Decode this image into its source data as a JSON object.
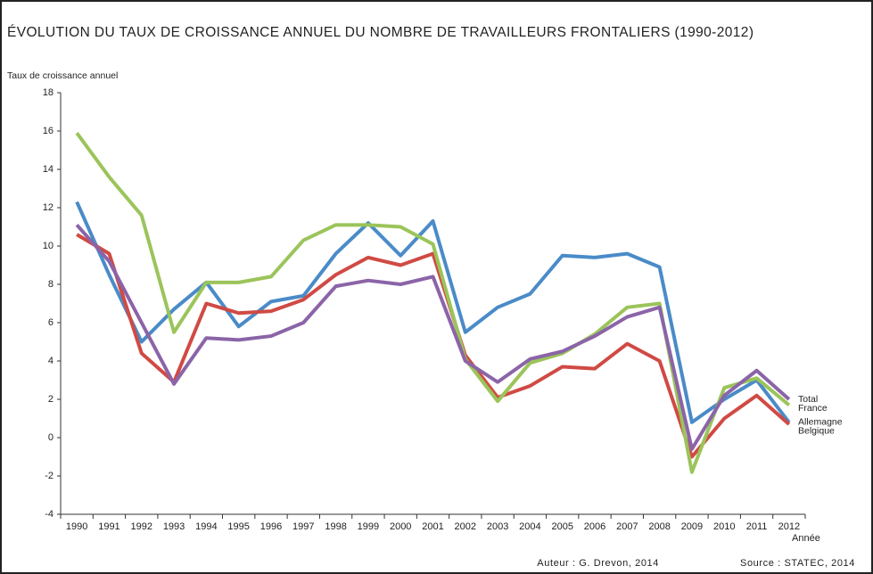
{
  "chart_data": {
    "type": "line",
    "title": "ÉVOLUTION  DU TAUX DE CROISSANCE ANNUEL DU NOMBRE DE TRAVAILLEURS FRONTALIERS (1990-2012)",
    "y_label": "Taux de croissance annuel",
    "x_label": "Année",
    "author": "Auteur : G. Drevon, 2014",
    "source": "Source : STATEC, 2014",
    "categories": [
      "1990",
      "1991",
      "1992",
      "1993",
      "1994",
      "1995",
      "1996",
      "1997",
      "1998",
      "1999",
      "2000",
      "2001",
      "2002",
      "2003",
      "2004",
      "2005",
      "2006",
      "2007",
      "2008",
      "2009",
      "2010",
      "2011",
      "2012"
    ],
    "series": [
      {
        "name": "Allemagne",
        "color": "#4a8bc8",
        "values": [
          12.3,
          8.5,
          5.0,
          6.7,
          8.1,
          5.8,
          7.1,
          7.4,
          9.6,
          11.2,
          9.5,
          11.3,
          5.5,
          6.8,
          7.5,
          9.5,
          9.4,
          9.6,
          8.9,
          0.8,
          2.0,
          3.0,
          0.8
        ]
      },
      {
        "name": "Belgique",
        "color": "#d04a44",
        "values": [
          10.6,
          9.6,
          4.4,
          2.9,
          7.0,
          6.5,
          6.6,
          7.2,
          8.5,
          9.4,
          9.0,
          9.6,
          4.3,
          2.1,
          2.7,
          3.7,
          3.6,
          4.9,
          4.0,
          -1.0,
          1.0,
          2.2,
          0.7
        ]
      },
      {
        "name": "France",
        "color": "#9bc45a",
        "values": [
          15.9,
          13.6,
          11.6,
          5.5,
          8.1,
          8.1,
          8.4,
          10.3,
          11.1,
          11.1,
          11.0,
          10.1,
          4.1,
          1.9,
          3.9,
          4.4,
          5.4,
          6.8,
          7.0,
          -1.8,
          2.6,
          3.1,
          1.7
        ]
      },
      {
        "name": "Total",
        "color": "#8b64a8",
        "values": [
          11.1,
          9.2,
          6.0,
          2.8,
          5.2,
          5.1,
          5.3,
          6.0,
          7.9,
          8.2,
          8.0,
          8.4,
          4.0,
          2.9,
          4.1,
          4.5,
          5.3,
          6.3,
          6.8,
          -0.6,
          2.2,
          3.5,
          2.0
        ]
      }
    ],
    "ylim": [
      -4,
      18
    ],
    "yticks": [
      -4,
      -2,
      0,
      2,
      4,
      6,
      8,
      10,
      12,
      14,
      16,
      18
    ]
  }
}
